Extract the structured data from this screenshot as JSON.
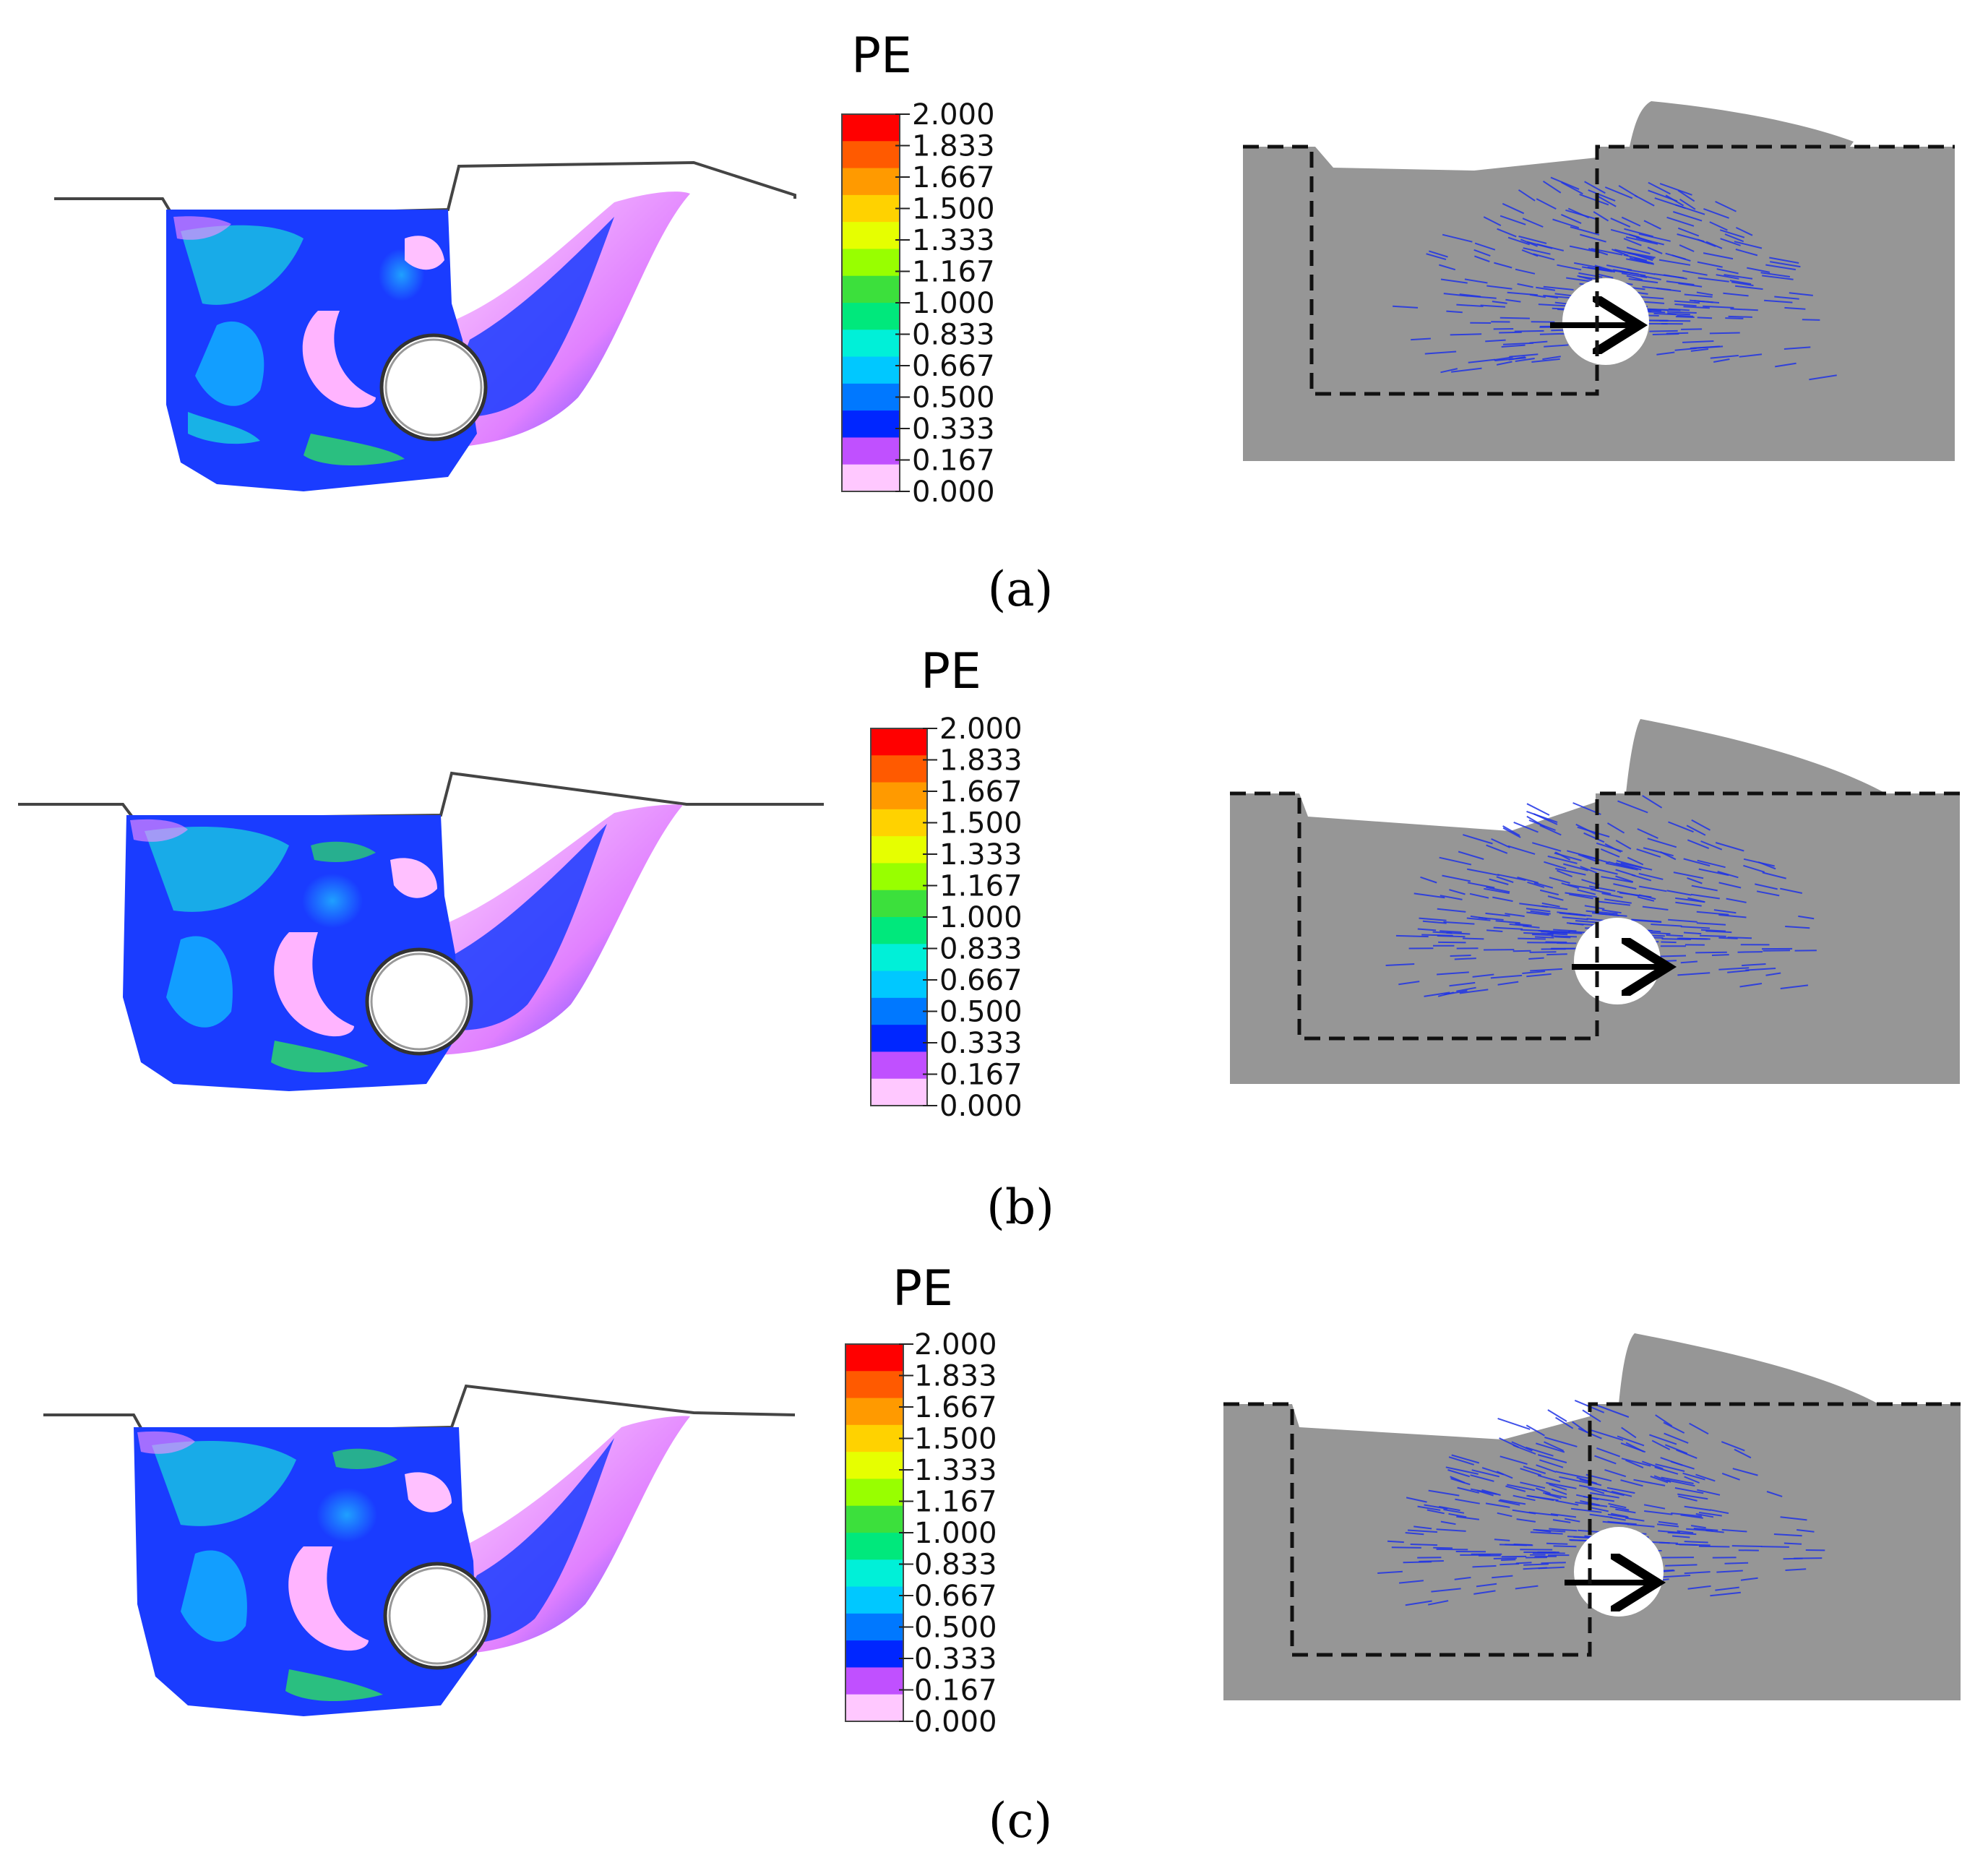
{
  "legend": {
    "title": "PE",
    "ticks": [
      "2.000",
      "1.833",
      "1.667",
      "1.500",
      "1.333",
      "1.167",
      "1.000",
      "0.833",
      "0.667",
      "0.500",
      "0.333",
      "0.167",
      "0.000"
    ],
    "colors": [
      "#ff0000",
      "#ff5a00",
      "#ff9a00",
      "#ffd200",
      "#e6ff00",
      "#98ff00",
      "#3ce03c",
      "#00e87c",
      "#00f0d8",
      "#00c8ff",
      "#0078ff",
      "#0026ff",
      "#c050ff",
      "#ffc8ff"
    ]
  },
  "panels": [
    {
      "caption": "(a)"
    },
    {
      "caption": "(b)"
    },
    {
      "caption": "(c)"
    }
  ],
  "colors": {
    "soil_gray": "#969696",
    "vector_blue": "#1f33e6",
    "contour_blue": "#1a3cff"
  }
}
